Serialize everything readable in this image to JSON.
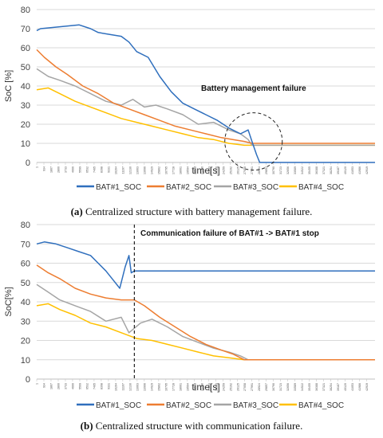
{
  "colors": {
    "bat1": "#2f6fbd",
    "bat2": "#ed7d31",
    "bat3": "#a5a5a5",
    "bat4": "#ffc000"
  },
  "chart_data": [
    {
      "type": "line",
      "panel": "a",
      "ylabel": "SoC [%]",
      "xlabel": "time[s]",
      "ylim": [
        0,
        80
      ],
      "yticks": [
        0,
        10,
        20,
        30,
        40,
        50,
        60,
        70,
        80
      ],
      "xlim": [
        0,
        44000
      ],
      "grid": "horizontal",
      "legend_position": "bottom",
      "annotation": "Battery management failure",
      "series": [
        {
          "name": "BAT#1_SOC",
          "color": "#2f6fbd",
          "x": [
            0,
            500,
            3000,
            5500,
            7000,
            8000,
            9500,
            11000,
            12000,
            13000,
            14500,
            16000,
            17500,
            19000,
            20500,
            22000,
            23500,
            25000,
            26500,
            27500,
            28000,
            28600,
            29000,
            44000
          ],
          "y": [
            69,
            70,
            71,
            72,
            70,
            68,
            67,
            66,
            63,
            58,
            55,
            45,
            37,
            31,
            28,
            25,
            22,
            18,
            15,
            17,
            11,
            4,
            0,
            0
          ]
        },
        {
          "name": "BAT#2_SOC",
          "color": "#ed7d31",
          "x": [
            0,
            1000,
            2500,
            4000,
            6000,
            8000,
            10000,
            12000,
            14000,
            16000,
            18000,
            20000,
            22000,
            24000,
            25500,
            27000,
            28000,
            44000
          ],
          "y": [
            59,
            55,
            50,
            46,
            40,
            36,
            31,
            28,
            25,
            22,
            19,
            17,
            15,
            13,
            12,
            11,
            10,
            10
          ]
        },
        {
          "name": "BAT#3_SOC",
          "color": "#a5a5a5",
          "x": [
            0,
            1500,
            3000,
            5000,
            7000,
            9000,
            11000,
            12500,
            14000,
            15500,
            17000,
            19000,
            21000,
            23000,
            25000,
            26500,
            27500,
            28000,
            44000
          ],
          "y": [
            49,
            45,
            43,
            40,
            36,
            32,
            30,
            33,
            29,
            30,
            28,
            25,
            20,
            21,
            17,
            15,
            12,
            9,
            9
          ]
        },
        {
          "name": "BAT#4_SOC",
          "color": "#ffc000",
          "x": [
            0,
            1500,
            3000,
            5000,
            7000,
            9000,
            11000,
            13000,
            15000,
            17000,
            19000,
            21000,
            23000,
            25000,
            27000,
            28000,
            44000
          ],
          "y": [
            38,
            39,
            36,
            32,
            29,
            26,
            23,
            21,
            19,
            17,
            15,
            13,
            12,
            10,
            9,
            9,
            9
          ]
        }
      ]
    },
    {
      "type": "line",
      "panel": "b",
      "ylabel": "SoC[%]",
      "xlabel": "time[s]",
      "ylim": [
        0,
        80
      ],
      "yticks": [
        0,
        10,
        20,
        30,
        40,
        50,
        60,
        70,
        80
      ],
      "xlim": [
        0,
        44000
      ],
      "grid": "horizontal",
      "legend_position": "bottom",
      "annotation": "Communication failure of BAT#1 -> BAT#1 stop",
      "failure_time": 12700,
      "series": [
        {
          "name": "BAT#1_SOC",
          "color": "#2f6fbd",
          "x": [
            0,
            1000,
            2500,
            4000,
            5500,
            7000,
            8000,
            9000,
            10000,
            10800,
            11500,
            12000,
            12300,
            12700,
            44000
          ],
          "y": [
            70,
            71,
            70,
            68,
            66,
            64,
            60,
            56,
            51,
            47,
            58,
            64,
            55,
            56,
            56
          ]
        },
        {
          "name": "BAT#2_SOC",
          "color": "#ed7d31",
          "x": [
            0,
            1500,
            3000,
            5000,
            7000,
            9000,
            11000,
            12700,
            14000,
            16000,
            18000,
            20000,
            22000,
            24000,
            25500,
            27000,
            44000
          ],
          "y": [
            59,
            55,
            52,
            47,
            44,
            42,
            41,
            41,
            38,
            32,
            27,
            22,
            18,
            15,
            13,
            10,
            10
          ]
        },
        {
          "name": "BAT#3_SOC",
          "color": "#a5a5a5",
          "x": [
            0,
            1500,
            3000,
            5000,
            7000,
            9000,
            11000,
            12000,
            13500,
            15000,
            17000,
            19000,
            21000,
            23000,
            25000,
            26500,
            27500,
            44000
          ],
          "y": [
            49,
            45,
            41,
            38,
            35,
            30,
            32,
            24,
            29,
            31,
            27,
            22,
            19,
            16,
            14,
            12,
            10,
            10
          ]
        },
        {
          "name": "BAT#4_SOC",
          "color": "#ffc000",
          "x": [
            0,
            1500,
            3000,
            5000,
            7000,
            9000,
            11000,
            13000,
            15000,
            17000,
            19000,
            21000,
            23000,
            25000,
            27000,
            44000
          ],
          "y": [
            38,
            39,
            36,
            33,
            29,
            27,
            24,
            21,
            20,
            18,
            16,
            14,
            12,
            11,
            10,
            10
          ]
        }
      ]
    }
  ],
  "captions": {
    "a_label": "(a)",
    "a_text": " Centralized structure with battery management failure.",
    "b_label": "(b)",
    "b_text": " Centralized structure with communication failure."
  }
}
